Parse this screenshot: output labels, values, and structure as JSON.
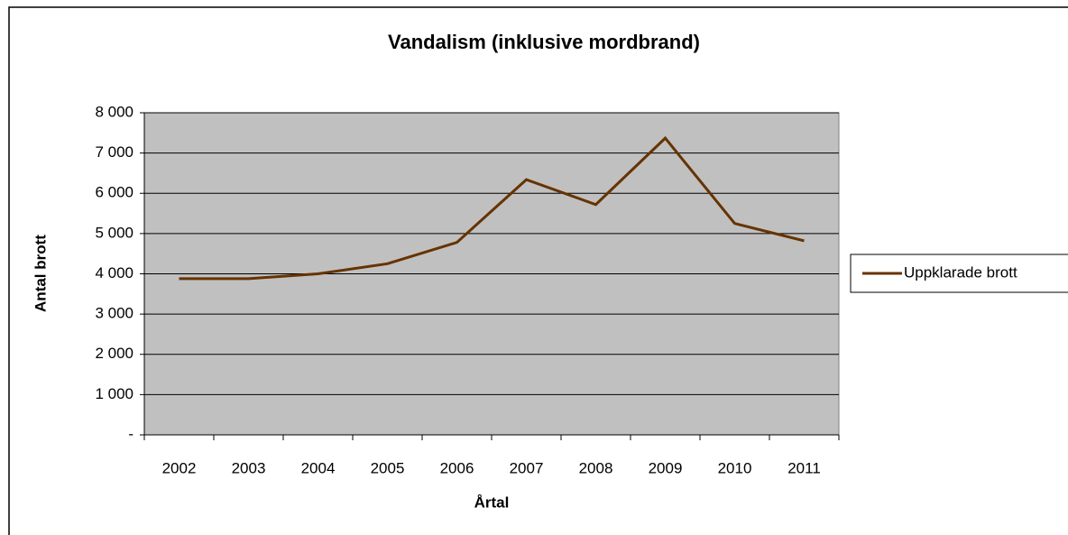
{
  "chart_data": {
    "type": "line",
    "title": "Vandalism (inklusive mordbrand)",
    "x_label": "Årtal",
    "y_label": "Antal brott",
    "categories": [
      "2002",
      "2003",
      "2004",
      "2005",
      "2006",
      "2007",
      "2008",
      "2009",
      "2010",
      "2011"
    ],
    "series": [
      {
        "name": "Uppklarade brott",
        "color": "#663300",
        "values": [
          3880,
          3880,
          4000,
          4250,
          4780,
          6340,
          5720,
          7370,
          5250,
          4820
        ]
      }
    ],
    "ylim": [
      0,
      8000
    ],
    "yticks": [
      {
        "value": 0,
        "label": "-"
      },
      {
        "value": 1000,
        "label": "1 000"
      },
      {
        "value": 2000,
        "label": "2 000"
      },
      {
        "value": 3000,
        "label": "3 000"
      },
      {
        "value": 4000,
        "label": "4 000"
      },
      {
        "value": 5000,
        "label": "5 000"
      },
      {
        "value": 6000,
        "label": "6 000"
      },
      {
        "value": 7000,
        "label": "7 000"
      },
      {
        "value": 8000,
        "label": "8 000"
      }
    ],
    "grid": true,
    "legend": "right"
  }
}
